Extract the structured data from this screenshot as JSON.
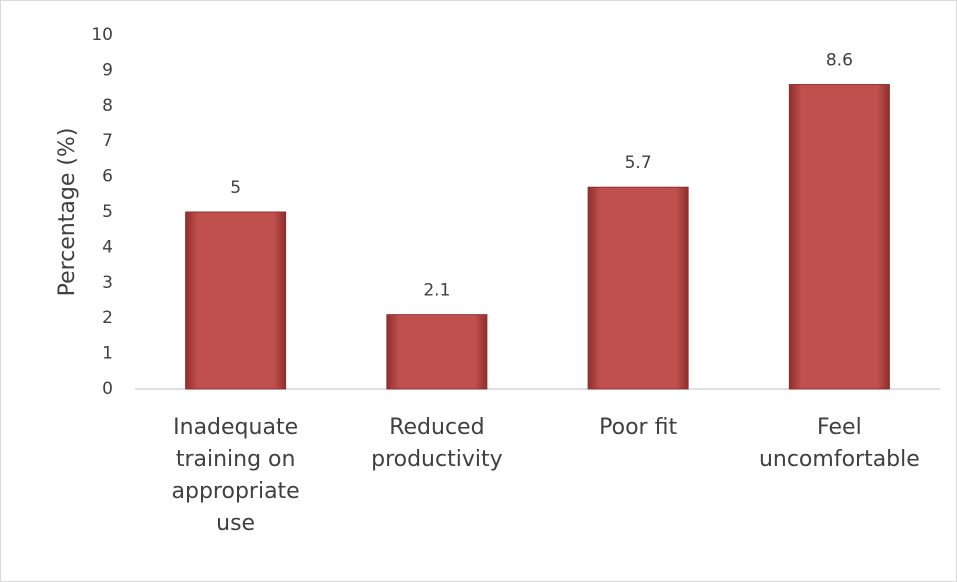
{
  "chart_data": {
    "type": "bar",
    "y_label": "Percentage (%)",
    "categories": [
      "Inadequate training on appropriate use",
      "Reduced productivity",
      "Poor fit",
      "Feel uncomfortable"
    ],
    "values": [
      5,
      2.1,
      5.7,
      8.6
    ],
    "color": "#c0504d",
    "ylim": [
      0,
      10
    ],
    "yticks": [
      0,
      1,
      2,
      3,
      4,
      5,
      6,
      7,
      8,
      9,
      10
    ],
    "grid": false
  }
}
